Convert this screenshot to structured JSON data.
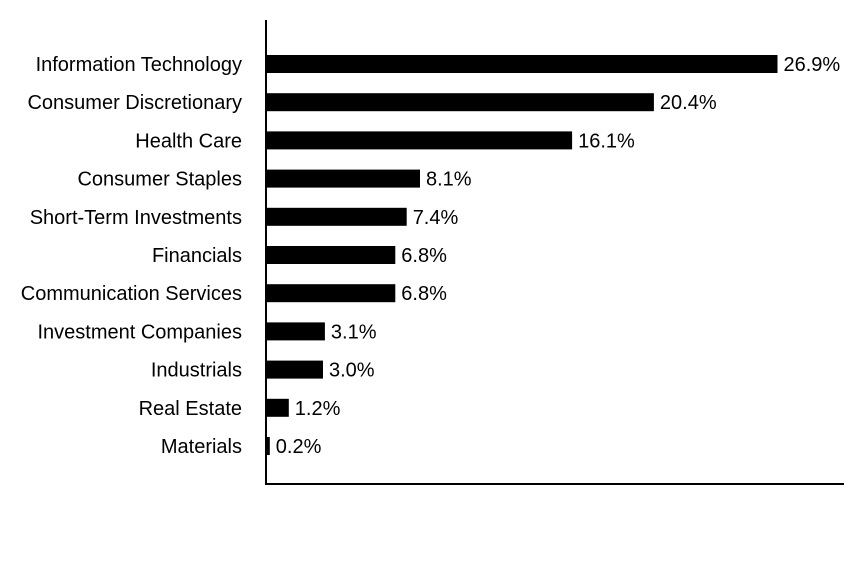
{
  "chart_data": {
    "type": "bar",
    "orientation": "horizontal",
    "categories": [
      "Information Technology",
      "Consumer Discretionary",
      "Health Care",
      "Consumer Staples",
      "Short-Term Investments",
      "Financials",
      "Communication Services",
      "Investment Companies",
      "Industrials",
      "Real Estate",
      "Materials"
    ],
    "values": [
      26.9,
      20.4,
      16.1,
      8.1,
      7.4,
      6.8,
      6.8,
      3.1,
      3.0,
      1.2,
      0.2
    ],
    "value_labels": [
      "26.9%",
      "20.4%",
      "16.1%",
      "8.1%",
      "7.4%",
      "6.8%",
      "6.8%",
      "3.1%",
      "3.0%",
      "1.2%",
      "0.2%"
    ],
    "title": "",
    "xlabel": "",
    "ylabel": "",
    "xlim": [
      0,
      30.4
    ],
    "grid": false,
    "legend": "none",
    "bar_color": "#000000"
  }
}
